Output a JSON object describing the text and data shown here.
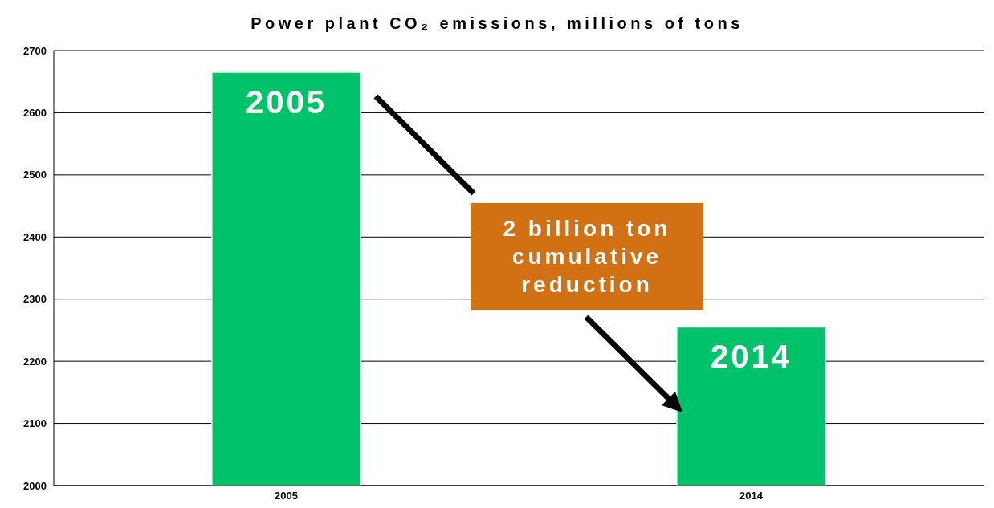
{
  "chart_data": {
    "type": "bar",
    "title": "Power plant CO₂ emissions, millions of tons",
    "categories": [
      "2005",
      "2014"
    ],
    "values": [
      2665,
      2255
    ],
    "color": "#00c26b",
    "ylim": [
      2000,
      2700
    ],
    "yticks": [
      2000,
      2100,
      2200,
      2300,
      2400,
      2500,
      2600,
      2700
    ],
    "grid": "y",
    "annotations": [
      {
        "text": "2005",
        "x": "2005",
        "y": 2665
      },
      {
        "text": "2014",
        "x": "2014",
        "y": 2255
      },
      "2 billion ton cumulative reduction"
    ]
  }
}
